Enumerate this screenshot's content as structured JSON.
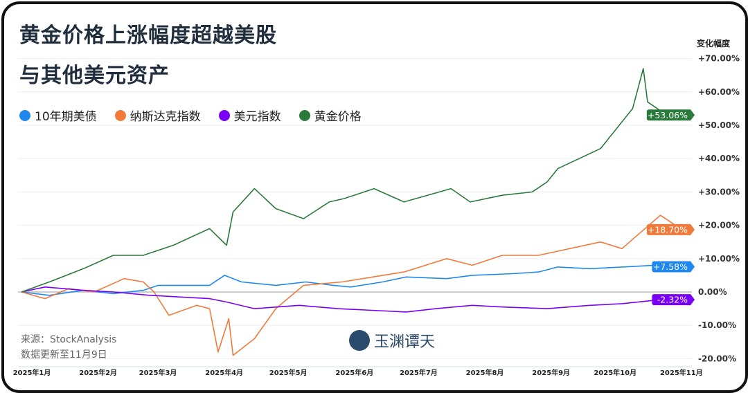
{
  "title_line1": "黄金价格上涨幅度超越美股",
  "title_line2": "与其他美元资产",
  "y_axis_label": "变化幅度",
  "source": "来源：StockAnalysis",
  "update": "数据更新至11月9日",
  "logo_text": "玉渊谭天",
  "chart_data": {
    "type": "line",
    "ylim": [
      -20,
      70
    ],
    "yticks": [
      "+70.00%",
      "+60.00%",
      "+50.00%",
      "+40.00%",
      "+30.00%",
      "+20.00%",
      "+10.00%",
      "0.00%",
      "-10.00%",
      "-20.00%"
    ],
    "ytick_values": [
      70,
      60,
      50,
      40,
      30,
      20,
      10,
      0,
      -10,
      -20
    ],
    "xticks": [
      "2025年1月",
      "2025年2月",
      "2025年3月",
      "2025年4月",
      "2025年5月",
      "2025年6月",
      "2025年7月",
      "2025年8月",
      "2025年9月",
      "2025年10月",
      "2025年11月"
    ],
    "xtick_dates": [
      "2025-01-01",
      "2025-02-01",
      "2025-03-01",
      "2025-04-01",
      "2025-05-01",
      "2025-06-01",
      "2025-07-01",
      "2025-08-01",
      "2025-09-01",
      "2025-10-01",
      "2025-11-01"
    ],
    "legend_placement": "top-left",
    "series": [
      {
        "name": "10年期美债",
        "color": "#1e88f0",
        "end_label": "+7.58%",
        "points": [
          [
            "2025-01-02",
            0
          ],
          [
            "2025-01-15",
            -1
          ],
          [
            "2025-01-31",
            0.5
          ],
          [
            "2025-02-14",
            -0.5
          ],
          [
            "2025-02-28",
            0.5
          ],
          [
            "2025-03-07",
            2
          ],
          [
            "2025-03-31",
            2
          ],
          [
            "2025-04-07",
            5
          ],
          [
            "2025-04-15",
            3
          ],
          [
            "2025-05-01",
            2
          ],
          [
            "2025-05-15",
            3
          ],
          [
            "2025-05-28",
            2
          ],
          [
            "2025-06-05",
            1.5
          ],
          [
            "2025-06-20",
            3
          ],
          [
            "2025-07-01",
            4.5
          ],
          [
            "2025-07-20",
            4
          ],
          [
            "2025-08-01",
            5
          ],
          [
            "2025-08-20",
            5.5
          ],
          [
            "2025-09-01",
            6
          ],
          [
            "2025-09-10",
            7.5
          ],
          [
            "2025-09-25",
            7
          ],
          [
            "2025-10-10",
            7.5
          ],
          [
            "2025-10-25",
            8
          ],
          [
            "2025-11-07",
            7.58
          ]
        ]
      },
      {
        "name": "纳斯达克指数",
        "color": "#f07a3c",
        "end_label": "+18.70%",
        "points": [
          [
            "2025-01-02",
            0
          ],
          [
            "2025-01-13",
            -2
          ],
          [
            "2025-01-24",
            1
          ],
          [
            "2025-02-05",
            0
          ],
          [
            "2025-02-19",
            4
          ],
          [
            "2025-02-28",
            3
          ],
          [
            "2025-03-05",
            0
          ],
          [
            "2025-03-12",
            -7
          ],
          [
            "2025-03-25",
            -4
          ],
          [
            "2025-03-31",
            -5
          ],
          [
            "2025-04-04",
            -18
          ],
          [
            "2025-04-09",
            -8
          ],
          [
            "2025-04-11",
            -19
          ],
          [
            "2025-04-21",
            -14
          ],
          [
            "2025-05-01",
            -5
          ],
          [
            "2025-05-14",
            2
          ],
          [
            "2025-06-01",
            3
          ],
          [
            "2025-06-30",
            6
          ],
          [
            "2025-07-20",
            10
          ],
          [
            "2025-08-01",
            8
          ],
          [
            "2025-08-15",
            11
          ],
          [
            "2025-09-01",
            11
          ],
          [
            "2025-09-30",
            15
          ],
          [
            "2025-10-10",
            13
          ],
          [
            "2025-10-28",
            23
          ],
          [
            "2025-11-04",
            20
          ],
          [
            "2025-11-07",
            18.7
          ]
        ]
      },
      {
        "name": "美元指数",
        "color": "#7a00f5",
        "end_label": "-2.32%",
        "points": [
          [
            "2025-01-02",
            0
          ],
          [
            "2025-01-13",
            1.5
          ],
          [
            "2025-01-31",
            0.5
          ],
          [
            "2025-02-14",
            0
          ],
          [
            "2025-03-03",
            -1
          ],
          [
            "2025-03-31",
            -2
          ],
          [
            "2025-04-08",
            -3
          ],
          [
            "2025-04-21",
            -5
          ],
          [
            "2025-05-12",
            -4
          ],
          [
            "2025-05-30",
            -5
          ],
          [
            "2025-06-15",
            -5.5
          ],
          [
            "2025-07-01",
            -6
          ],
          [
            "2025-07-15",
            -5
          ],
          [
            "2025-08-01",
            -4
          ],
          [
            "2025-08-15",
            -4.5
          ],
          [
            "2025-09-05",
            -5
          ],
          [
            "2025-09-25",
            -4
          ],
          [
            "2025-10-10",
            -3.5
          ],
          [
            "2025-10-25",
            -2.5
          ],
          [
            "2025-11-04",
            -2
          ],
          [
            "2025-11-07",
            -2.32
          ]
        ]
      },
      {
        "name": "黄金价格",
        "color": "#2a7a3b",
        "end_label": "+53.06%",
        "points": [
          [
            "2025-01-02",
            0
          ],
          [
            "2025-01-15",
            3
          ],
          [
            "2025-01-31",
            7
          ],
          [
            "2025-02-14",
            11
          ],
          [
            "2025-02-28",
            11
          ],
          [
            "2025-03-14",
            14
          ],
          [
            "2025-03-31",
            19
          ],
          [
            "2025-04-08",
            14
          ],
          [
            "2025-04-11",
            24
          ],
          [
            "2025-04-21",
            31
          ],
          [
            "2025-05-01",
            25
          ],
          [
            "2025-05-14",
            22
          ],
          [
            "2025-05-26",
            27
          ],
          [
            "2025-06-02",
            28
          ],
          [
            "2025-06-16",
            31
          ],
          [
            "2025-06-30",
            27
          ],
          [
            "2025-07-22",
            31
          ],
          [
            "2025-07-31",
            27
          ],
          [
            "2025-08-15",
            29
          ],
          [
            "2025-08-29",
            30
          ],
          [
            "2025-09-05",
            33
          ],
          [
            "2025-09-10",
            37
          ],
          [
            "2025-09-30",
            43
          ],
          [
            "2025-10-15",
            55
          ],
          [
            "2025-10-20",
            67
          ],
          [
            "2025-10-22",
            57
          ],
          [
            "2025-10-31",
            53
          ],
          [
            "2025-11-07",
            53.06
          ]
        ]
      }
    ]
  }
}
